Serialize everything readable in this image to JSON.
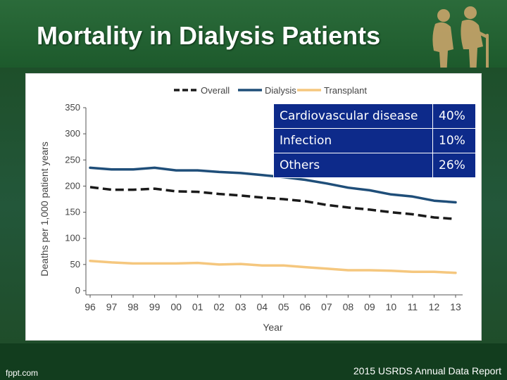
{
  "slide": {
    "title": "Mortality in Dialysis Patients",
    "footer_left": "fppt.com",
    "footer_right": "2015 USRDS Annual Data Report"
  },
  "colors": {
    "header_green": "#2b6b3a",
    "body_green": "#1f5a2e",
    "overall": "#1a1a1a",
    "dialysis": "#1f4e79",
    "transplant": "#f5c77e",
    "table_bg": "#0d2a8a"
  },
  "table": {
    "rows": [
      {
        "cause": "Cardiovascular disease",
        "pct": "40%"
      },
      {
        "cause": "Infection",
        "pct": "10%"
      },
      {
        "cause": "Others",
        "pct": "26%"
      }
    ]
  },
  "chart_data": {
    "type": "line",
    "xlabel": "Year",
    "ylabel": "Deaths per 1,000 patient years",
    "ylim": [
      0,
      350
    ],
    "yticks": [
      0,
      50,
      100,
      150,
      200,
      250,
      300,
      350
    ],
    "categories": [
      "96",
      "97",
      "98",
      "99",
      "00",
      "01",
      "02",
      "03",
      "04",
      "05",
      "06",
      "07",
      "08",
      "09",
      "10",
      "11",
      "12",
      "13"
    ],
    "legend_position": "top",
    "grid": false,
    "series": [
      {
        "name": "Overall",
        "style": "dashed",
        "color": "#1a1a1a",
        "values": [
          198,
          193,
          193,
          195,
          190,
          189,
          185,
          182,
          178,
          175,
          171,
          164,
          159,
          155,
          150,
          146,
          140,
          137
        ]
      },
      {
        "name": "Dialysis",
        "style": "solid",
        "color": "#1f4e79",
        "values": [
          235,
          232,
          232,
          235,
          230,
          230,
          227,
          225,
          221,
          217,
          212,
          205,
          197,
          192,
          184,
          180,
          172,
          169
        ]
      },
      {
        "name": "Transplant",
        "style": "solid",
        "color": "#f5c77e",
        "values": [
          57,
          54,
          52,
          52,
          52,
          53,
          50,
          51,
          48,
          48,
          45,
          42,
          39,
          39,
          38,
          36,
          36,
          34
        ]
      }
    ]
  }
}
